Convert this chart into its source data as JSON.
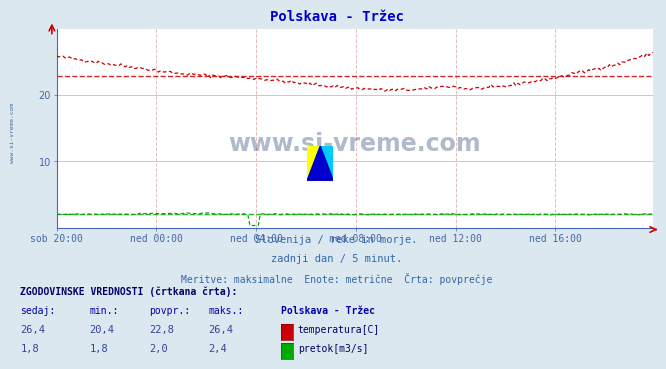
{
  "title": "Polskava - Tržec",
  "title_color": "#0000cc",
  "bg_color": "#dce8f0",
  "plot_bg_color": "#ffffff",
  "x_labels": [
    "sob 20:00",
    "ned 00:00",
    "ned 04:00",
    "ned 08:00",
    "ned 12:00",
    "ned 16:00"
  ],
  "x_ticks_pos": [
    0,
    48,
    96,
    144,
    192,
    240
  ],
  "total_points": 288,
  "ylim": [
    0,
    30
  ],
  "yticks": [
    10,
    20
  ],
  "temp_color": "#cc0000",
  "flow_color": "#00aa00",
  "temp_min": 20.4,
  "temp_max": 26.4,
  "temp_avg": 22.8,
  "temp_current": 26.4,
  "flow_min": 1.8,
  "flow_max": 2.4,
  "flow_avg": 2.0,
  "flow_current": 1.8,
  "subtitle1": "Slovenija / reke in morje.",
  "subtitle2": "zadnji dan / 5 minut.",
  "subtitle3": "Meritve: maksimalne  Enote: metrične  Črta: povprečje",
  "subtitle_color": "#3366aa",
  "table_header": "ZGODOVINSKE VREDNOSTI (črtkana črta):",
  "col_headers": [
    "sedaj:",
    "min.:",
    "povpr.:",
    "maks.:",
    "Polskava - Tržec"
  ],
  "watermark": "www.si-vreme.com",
  "watermark_color": "#1a3a6a",
  "left_label": "www.si-vreme.com",
  "left_label_color": "#4466aa",
  "temp_icon_color": "#cc0000",
  "flow_icon_color": "#00aa00",
  "axis_color": "#4466aa",
  "grid_h_color": "#ffcccc",
  "grid_v_color": "#ffcccc"
}
